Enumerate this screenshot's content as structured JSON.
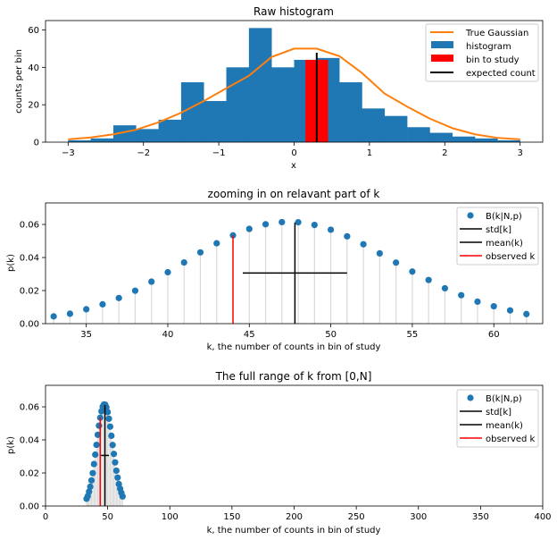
{
  "chart_data": [
    {
      "type": "bar",
      "title": "Raw histogram",
      "xlabel": "x",
      "ylabel": "counts per bin",
      "xlim": [
        -3.3,
        3.3
      ],
      "ylim": [
        0,
        65
      ],
      "xticks": [
        -3,
        -2,
        -1,
        0,
        1,
        2,
        3
      ],
      "yticks": [
        0,
        20,
        40,
        60
      ],
      "bin_edges": [
        -3.0,
        -2.7,
        -2.4,
        -2.1,
        -1.8,
        -1.5,
        -1.2,
        -0.9,
        -0.6,
        -0.3,
        0.0,
        0.3,
        0.6,
        0.9,
        1.2,
        1.5,
        1.8,
        2.1,
        2.4,
        2.7,
        3.0
      ],
      "counts": [
        1,
        2,
        9,
        7,
        12,
        32,
        22,
        40,
        61,
        40,
        44,
        45,
        32,
        18,
        14,
        8,
        5,
        3,
        2,
        1
      ],
      "study_bin": {
        "x0": 0.15,
        "x1": 0.45,
        "count": 44
      },
      "expected_count": {
        "x": 0.3,
        "y0": 0,
        "y1": 47.8
      },
      "gaussian": {
        "x": [
          -3.0,
          -2.7,
          -2.4,
          -2.1,
          -1.8,
          -1.5,
          -1.2,
          -0.9,
          -0.6,
          -0.3,
          0.0,
          0.3,
          0.6,
          0.9,
          1.2,
          1.5,
          1.8,
          2.1,
          2.4,
          2.7,
          3.0
        ],
        "y": [
          1.5,
          2.5,
          4.2,
          6.6,
          10.6,
          15.7,
          22.0,
          28.8,
          35.5,
          45.5,
          50,
          50,
          46,
          37,
          26,
          19,
          12.6,
          7.5,
          4.2,
          2.3,
          1.5
        ]
      },
      "legend": [
        "True Gaussian",
        "histogram",
        "bin to study",
        "expected count"
      ],
      "colors": {
        "hist": "#1f77b4",
        "gauss": "#ff7f0e",
        "study": "#ff0000",
        "expected": "#000000"
      }
    },
    {
      "type": "scatter",
      "title": "zooming in on relavant part of k",
      "xlabel": "k, the number of counts in bin of study",
      "ylabel": "p(k)",
      "xlim": [
        32.5,
        63.0
      ],
      "ylim": [
        0,
        0.073
      ],
      "xticks": [
        35,
        40,
        45,
        50,
        55,
        60
      ],
      "yticks": [
        0.0,
        0.02,
        0.04,
        0.06
      ],
      "ytick_labels": [
        "0.00",
        "0.02",
        "0.04",
        "0.06"
      ],
      "k": [
        33,
        34,
        35,
        36,
        37,
        38,
        39,
        40,
        41,
        42,
        43,
        44,
        45,
        46,
        47,
        48,
        49,
        50,
        51,
        52,
        53,
        54,
        55,
        56,
        57,
        58,
        59,
        60,
        61,
        62
      ],
      "p": [
        0.0044,
        0.006,
        0.0087,
        0.0117,
        0.0155,
        0.0199,
        0.0254,
        0.0311,
        0.037,
        0.0431,
        0.0486,
        0.0534,
        0.0573,
        0.0601,
        0.0614,
        0.0613,
        0.0597,
        0.0568,
        0.0528,
        0.048,
        0.0425,
        0.0369,
        0.0315,
        0.0264,
        0.0214,
        0.0172,
        0.0133,
        0.0105,
        0.008,
        0.0058
      ],
      "mean": 47.8,
      "mean_line": [
        0,
        0.0611
      ],
      "std_range": [
        44.6,
        51.0
      ],
      "std_y": 0.0306,
      "observed": 44,
      "observed_line": [
        0,
        0.0534
      ],
      "legend": [
        "B(k|N,p)",
        "std[k]",
        "mean(k)",
        "observed k"
      ]
    },
    {
      "type": "scatter",
      "title": "The full range of k from [0,N]",
      "xlabel": "k, the number of counts in bin of study",
      "ylabel": "p(k)",
      "xlim": [
        0,
        400
      ],
      "ylim": [
        0,
        0.073
      ],
      "xticks": [
        0,
        50,
        100,
        150,
        200,
        250,
        300,
        350,
        400
      ],
      "yticks": [
        0.0,
        0.02,
        0.04,
        0.06
      ],
      "ytick_labels": [
        "0.00",
        "0.02",
        "0.04",
        "0.06"
      ],
      "mean": 47.8,
      "mean_line": [
        0,
        0.0611
      ],
      "std_range": [
        44.6,
        51.0
      ],
      "std_y": 0.0306,
      "observed": 44,
      "observed_line": [
        0,
        0.0534
      ],
      "legend": [
        "B(k|N,p)",
        "std[k]",
        "mean(k)",
        "observed k"
      ]
    }
  ]
}
